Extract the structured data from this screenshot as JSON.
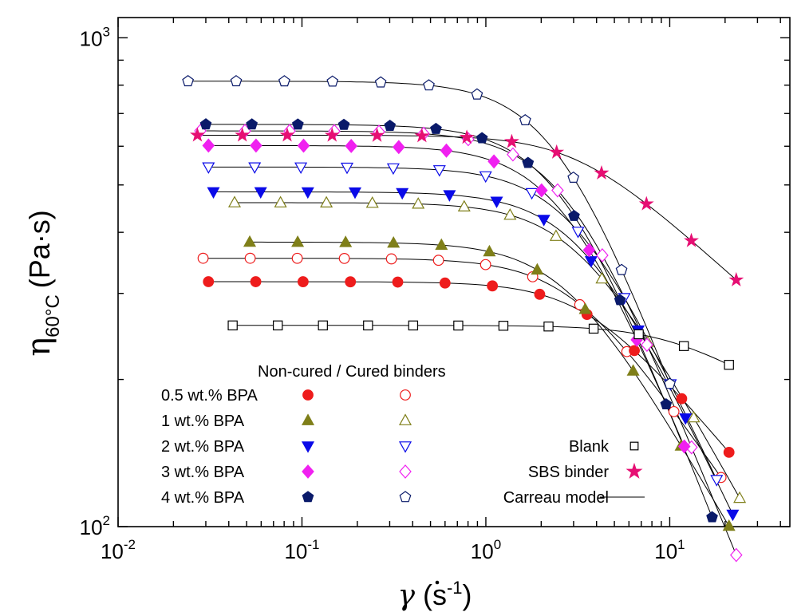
{
  "chart_data": {
    "type": "scatter",
    "x_scale": "log",
    "y_scale": "log",
    "xlim": [
      0.01,
      45
    ],
    "ylim": [
      100,
      1100
    ],
    "x_ticks": [
      {
        "value": 0.01,
        "base": "10",
        "exp": "-2"
      },
      {
        "value": 0.1,
        "base": "10",
        "exp": "-1"
      },
      {
        "value": 1,
        "base": "10",
        "exp": "0"
      },
      {
        "value": 10,
        "base": "10",
        "exp": "1"
      }
    ],
    "y_ticks": [
      {
        "value": 100,
        "base": "10",
        "exp": "2"
      },
      {
        "value": 1000,
        "base": "10",
        "exp": "3"
      }
    ],
    "xlabel": {
      "symbol": "γ",
      "open": "(s",
      "exp": "-1",
      "close": ")"
    },
    "ylabel": {
      "symbol": "η",
      "sub": "60°C",
      "unit": "(Pa·s)"
    },
    "legend_title": "Non-cured / Cured binders",
    "legend_rows": [
      {
        "label": "0.5 wt.% BPA",
        "series_index": 0
      },
      {
        "label": "1 wt.% BPA",
        "series_index": 1
      },
      {
        "label": "2 wt.% BPA",
        "series_index": 2
      },
      {
        "label": "3 wt.% BPA",
        "series_index": 3
      },
      {
        "label": "4 wt.% BPA",
        "series_index": 4
      }
    ],
    "legend_extra": [
      {
        "label": "Blank",
        "kind": "blank"
      },
      {
        "label": "SBS binder",
        "kind": "sbs"
      },
      {
        "label": "Carreau model",
        "kind": "line"
      }
    ],
    "series": [
      {
        "label": "0.5 wt.% BPA",
        "color": "#ee1c1c",
        "marker": "circle",
        "noncured": {
          "eta0": 317,
          "lambda": 0.28,
          "n": 0.55,
          "x_min": 0.031,
          "x_max": 21
        },
        "cured": {
          "eta0": 354,
          "lambda": 0.34,
          "n": 0.45,
          "x_min": 0.029,
          "x_max": 19
        }
      },
      {
        "label": "1 wt.% BPA",
        "color": "#7f7f19",
        "marker": "triangle-up",
        "noncured": {
          "eta0": 382,
          "lambda": 0.37,
          "n": 0.35,
          "x_min": 0.052,
          "x_max": 21
        },
        "cured": {
          "eta0": 460,
          "lambda": 0.32,
          "n": 0.32,
          "x_min": 0.043,
          "x_max": 24
        }
      },
      {
        "label": "2 wt.% BPA",
        "color": "#0a0ae8",
        "marker": "triangle-down",
        "noncured": {
          "eta0": 484,
          "lambda": 0.3,
          "n": 0.2,
          "x_min": 0.033,
          "x_max": 22
        },
        "cured": {
          "eta0": 544,
          "lambda": 0.33,
          "n": 0.18,
          "x_min": 0.031,
          "x_max": 18
        }
      },
      {
        "label": "3 wt.% BPA",
        "color": "#f020f0",
        "marker": "diamond",
        "noncured": {
          "eta0": 602,
          "lambda": 0.38,
          "n": 0.08,
          "x_min": 0.031,
          "x_max": 12
        },
        "cured": {
          "eta0": 645,
          "lambda": 0.37,
          "n": 0.07,
          "x_min": 0.028,
          "x_max": 23
        }
      },
      {
        "label": "4 wt.% BPA",
        "color": "#0a1a6a",
        "marker": "pentagon",
        "noncured": {
          "eta0": 665,
          "lambda": 0.4,
          "n": 0.04,
          "x_min": 0.03,
          "x_max": 17
        },
        "cured": {
          "eta0": 815,
          "lambda": 0.41,
          "n": 0.01,
          "x_min": 0.024,
          "x_max": 10
        }
      }
    ],
    "blank": {
      "label": "Blank",
      "color": "#000000",
      "marker": "square",
      "eta0": 258,
      "lambda": 0.1,
      "n": 0.78,
      "x_min": 0.042,
      "x_max": 21
    },
    "sbs": {
      "label": "SBS binder",
      "color": "#e60f73",
      "marker": "star",
      "eta0": 632,
      "lambda": 0.32,
      "n": 0.66,
      "x_min": 0.027,
      "x_max": 23
    },
    "points_per_decade": 4
  }
}
